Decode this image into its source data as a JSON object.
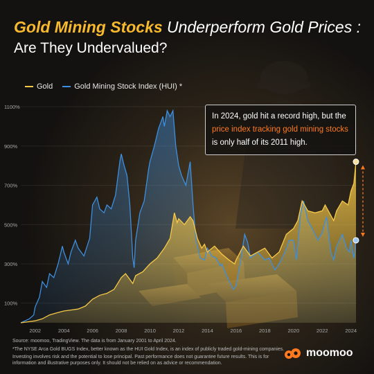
{
  "header": {
    "title_highlight": "Gold Mining Stocks",
    "title_rest": " Underperform Gold Prices :",
    "subtitle": "Are They Undervalued?"
  },
  "callout": {
    "text_before": "In 2024, gold hit a record high, but the ",
    "text_accent": "price index tracking gold mining stocks",
    "text_after": " is only half of its 2011 high."
  },
  "footer": {
    "source": "Source: moomoo, TradingView. The data is from January 2001 to April 2024.",
    "note": "*The NYSE Arca Gold BUGS Index, better known as the HUI Gold Index, is an index of publicly traded gold-mining companies.",
    "disclaimer": "Investing involves risk and the potential to lose principal. Past performance does not guarantee future results. This is for information and illustrative purposes only. It should not be relied on as advice or recommendation."
  },
  "brand": {
    "name": "moomoo",
    "logo_icon": "moomoo-logo-icon"
  },
  "colors": {
    "gold": "#f7c948",
    "hui": "#3d8fe0",
    "accent": "#ff7a1f",
    "title_highlight": "#f7b92e"
  },
  "chart_data": {
    "type": "area",
    "title": "",
    "xlabel": "",
    "ylabel": "",
    "x_ticks": [
      "2002",
      "2004",
      "2006",
      "2008",
      "2010",
      "2012",
      "2014",
      "2016",
      "2018",
      "2020",
      "2022",
      "2024"
    ],
    "y_ticks": [
      "100%",
      "300%",
      "500%",
      "700%",
      "900%",
      "1100%"
    ],
    "ylim": [
      0,
      1150
    ],
    "xlim": [
      2001,
      2024.4
    ],
    "grid": true,
    "legend_position": "top-left",
    "series": [
      {
        "name": "Gold",
        "color": "#f7c948",
        "points": [
          [
            2001,
            0
          ],
          [
            2001.5,
            5
          ],
          [
            2002,
            10
          ],
          [
            2002.5,
            20
          ],
          [
            2003,
            40
          ],
          [
            2003.5,
            50
          ],
          [
            2004,
            60
          ],
          [
            2004.5,
            65
          ],
          [
            2005,
            70
          ],
          [
            2005.5,
            85
          ],
          [
            2006,
            120
          ],
          [
            2006.5,
            140
          ],
          [
            2007,
            150
          ],
          [
            2007.5,
            170
          ],
          [
            2008,
            230
          ],
          [
            2008.3,
            250
          ],
          [
            2008.8,
            200
          ],
          [
            2009,
            240
          ],
          [
            2009.5,
            260
          ],
          [
            2010,
            300
          ],
          [
            2010.5,
            330
          ],
          [
            2011,
            380
          ],
          [
            2011.4,
            430
          ],
          [
            2011.7,
            560
          ],
          [
            2011.9,
            510
          ],
          [
            2012,
            530
          ],
          [
            2012.4,
            500
          ],
          [
            2012.8,
            540
          ],
          [
            2013,
            520
          ],
          [
            2013.3,
            430
          ],
          [
            2013.6,
            380
          ],
          [
            2013.8,
            400
          ],
          [
            2014,
            360
          ],
          [
            2014.5,
            390
          ],
          [
            2015,
            350
          ],
          [
            2015.5,
            320
          ],
          [
            2015.9,
            300
          ],
          [
            2016,
            320
          ],
          [
            2016.5,
            390
          ],
          [
            2017,
            340
          ],
          [
            2017.5,
            360
          ],
          [
            2018,
            380
          ],
          [
            2018.5,
            330
          ],
          [
            2019,
            360
          ],
          [
            2019.5,
            450
          ],
          [
            2020,
            480
          ],
          [
            2020.3,
            520
          ],
          [
            2020.6,
            620
          ],
          [
            2021,
            570
          ],
          [
            2021.5,
            560
          ],
          [
            2022,
            570
          ],
          [
            2022.2,
            600
          ],
          [
            2022.8,
            520
          ],
          [
            2023,
            570
          ],
          [
            2023.4,
            620
          ],
          [
            2023.8,
            600
          ],
          [
            2024,
            670
          ],
          [
            2024.2,
            710
          ],
          [
            2024.35,
            820
          ]
        ]
      },
      {
        "name": "Gold Mining Stock Index (HUI) *",
        "color": "#3d8fe0",
        "points": [
          [
            2001,
            0
          ],
          [
            2001.3,
            10
          ],
          [
            2001.6,
            20
          ],
          [
            2001.9,
            40
          ],
          [
            2002,
            80
          ],
          [
            2002.3,
            130
          ],
          [
            2002.5,
            210
          ],
          [
            2002.8,
            180
          ],
          [
            2003,
            250
          ],
          [
            2003.3,
            230
          ],
          [
            2003.6,
            300
          ],
          [
            2003.9,
            390
          ],
          [
            2004,
            360
          ],
          [
            2004.3,
            300
          ],
          [
            2004.5,
            360
          ],
          [
            2004.8,
            420
          ],
          [
            2005,
            380
          ],
          [
            2005.4,
            340
          ],
          [
            2005.8,
            430
          ],
          [
            2006,
            600
          ],
          [
            2006.3,
            640
          ],
          [
            2006.5,
            580
          ],
          [
            2006.8,
            560
          ],
          [
            2007,
            600
          ],
          [
            2007.3,
            580
          ],
          [
            2007.6,
            650
          ],
          [
            2007.9,
            820
          ],
          [
            2008,
            860
          ],
          [
            2008.2,
            800
          ],
          [
            2008.4,
            750
          ],
          [
            2008.6,
            600
          ],
          [
            2008.8,
            330
          ],
          [
            2008.9,
            280
          ],
          [
            2009,
            420
          ],
          [
            2009.3,
            560
          ],
          [
            2009.6,
            620
          ],
          [
            2009.9,
            780
          ],
          [
            2010,
            820
          ],
          [
            2010.3,
            900
          ],
          [
            2010.6,
            990
          ],
          [
            2010.9,
            1050
          ],
          [
            2011,
            1000
          ],
          [
            2011.2,
            1080
          ],
          [
            2011.4,
            1050
          ],
          [
            2011.6,
            1080
          ],
          [
            2011.8,
            900
          ],
          [
            2012,
            800
          ],
          [
            2012.2,
            750
          ],
          [
            2012.5,
            700
          ],
          [
            2012.8,
            820
          ],
          [
            2013,
            600
          ],
          [
            2013.2,
            420
          ],
          [
            2013.5,
            330
          ],
          [
            2013.8,
            320
          ],
          [
            2014,
            380
          ],
          [
            2014.3,
            340
          ],
          [
            2014.6,
            330
          ],
          [
            2014.9,
            290
          ],
          [
            2015,
            300
          ],
          [
            2015.4,
            230
          ],
          [
            2015.8,
            170
          ],
          [
            2016,
            190
          ],
          [
            2016.3,
            310
          ],
          [
            2016.6,
            450
          ],
          [
            2016.8,
            410
          ],
          [
            2017,
            330
          ],
          [
            2017.5,
            360
          ],
          [
            2018,
            320
          ],
          [
            2018.3,
            330
          ],
          [
            2018.7,
            270
          ],
          [
            2019,
            300
          ],
          [
            2019.4,
            360
          ],
          [
            2019.7,
            420
          ],
          [
            2020,
            420
          ],
          [
            2020.2,
            320
          ],
          [
            2020.5,
            560
          ],
          [
            2020.7,
            620
          ],
          [
            2021,
            520
          ],
          [
            2021.3,
            480
          ],
          [
            2021.7,
            420
          ],
          [
            2022,
            460
          ],
          [
            2022.3,
            540
          ],
          [
            2022.6,
            360
          ],
          [
            2022.8,
            320
          ],
          [
            2023,
            390
          ],
          [
            2023.4,
            450
          ],
          [
            2023.7,
            380
          ],
          [
            2023.9,
            360
          ],
          [
            2024,
            420
          ],
          [
            2024.2,
            330
          ],
          [
            2024.35,
            420
          ]
        ]
      }
    ]
  }
}
